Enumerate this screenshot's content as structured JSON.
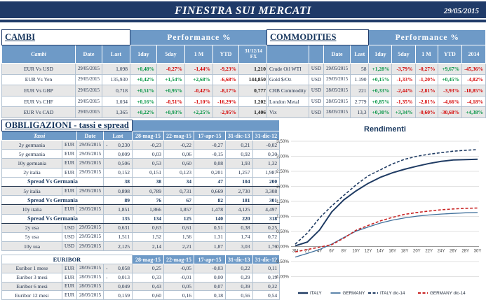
{
  "header": {
    "title": "FINESTRA SUI MERCATI",
    "date": "29/05/2015"
  },
  "colors": {
    "navy": "#1F3A68",
    "header_blue": "#6E9AC7",
    "positive_green": "#009342",
    "negative_red": "#D40000",
    "row_shade_gray": "#E7E7E7"
  },
  "cambi": {
    "title": "CAMBI",
    "perf_header": "Performance  %",
    "col_headers": {
      "name": "Cambi",
      "date": "Date",
      "last": "Last",
      "perf": [
        "1day",
        "5day",
        "1 M",
        "YTD"
      ],
      "fx": "31/12/14 FX"
    },
    "rows": [
      {
        "name": "EUR Vs USD",
        "date": "29/05/2015",
        "last": "1,098",
        "perf": [
          "+0,48%",
          "-0,27%",
          "-1,44%",
          "-9,23%"
        ],
        "fx": "1,210"
      },
      {
        "name": "EUR Vs Yen",
        "date": "29/05/2015",
        "last": "135,930",
        "perf": [
          "+0,42%",
          "+1,54%",
          "+2,68%",
          "-6,68%"
        ],
        "fx": "144,850"
      },
      {
        "name": "EUR Vs GBP",
        "date": "29/05/2015",
        "last": "0,718",
        "perf": [
          "+0,51%",
          "+0,95%",
          "-0,42%",
          "-8,17%"
        ],
        "fx": "0,777"
      },
      {
        "name": "EUR Vs CHF",
        "date": "29/05/2015",
        "last": "1,034",
        "perf": [
          "+0,16%",
          "-0,51%",
          "-1,10%",
          "-16,29%"
        ],
        "fx": "1,202"
      },
      {
        "name": "EUR Vs CAD",
        "date": "29/05/2015",
        "last": "1,365",
        "perf": [
          "+0,22%",
          "+0,93%",
          "+2,25%",
          "-2,95%"
        ],
        "fx": "1,406"
      }
    ]
  },
  "commodities": {
    "title": "COMMODITIES",
    "perf_header": "Performance  %",
    "col_headers": {
      "date": "Date",
      "last": "Last",
      "perf": [
        "1day",
        "5day",
        "1 M",
        "YTD",
        "2014"
      ]
    },
    "rows": [
      {
        "name": "Crude Oil WTI",
        "cur": "USD",
        "date": "29/05/2015",
        "last": "58",
        "perf": [
          "+1,28%",
          "-3,79%",
          "-0,27%",
          "+9,67%",
          "-45,36%"
        ]
      },
      {
        "name": "Gold $/Oz",
        "cur": "USD",
        "date": "29/05/2015",
        "last": "1.190",
        "perf": [
          "+0,15%",
          "-1,33%",
          "-1,20%",
          "+0,45%",
          "-4,82%"
        ]
      },
      {
        "name": "CRB Commodity",
        "cur": "USD",
        "date": "28/05/2015",
        "last": "221",
        "perf": [
          "+0,33%",
          "-2,44%",
          "-2,81%",
          "-3,93%",
          "-18,85%"
        ]
      },
      {
        "name": "London Metal",
        "cur": "USD",
        "date": "28/05/2015",
        "last": "2.779",
        "perf": [
          "+0,85%",
          "-1,35%",
          "-2,81%",
          "-4,66%",
          "-4,18%"
        ]
      },
      {
        "name": "Vix",
        "cur": "USD",
        "date": "28/05/2015",
        "last": "13,3",
        "perf": [
          "+0,30%",
          "+3,34%",
          "-0,60%",
          "-30,68%",
          "+4,38%"
        ]
      }
    ]
  },
  "obbligazioni": {
    "title": "OBBLIGAZIONI - tassi e spread",
    "col_headers": {
      "name": "Tassi",
      "date": "Date",
      "last": "Last",
      "values": [
        "28-mag-15",
        "22-mag-15",
        "17-apr-15",
        "31-dic-13",
        "31-dic-12"
      ]
    },
    "rows": [
      {
        "kind": "rate",
        "name": "2y germania",
        "cur": "EUR",
        "date": "29/05/2015",
        "last": "-0,230",
        "values": [
          "-0,23",
          "-0,22",
          "-0,27",
          "0,21",
          "-0,02"
        ]
      },
      {
        "kind": "rate",
        "name": "5y germania",
        "cur": "EUR",
        "date": "29/05/2015",
        "last": "0,009",
        "values": [
          "0,03",
          "0,06",
          "-0,15",
          "0,92",
          "0,30"
        ]
      },
      {
        "kind": "rate",
        "name": "10y germania",
        "cur": "EUR",
        "date": "29/05/2015",
        "last": "0,506",
        "values": [
          "0,53",
          "0,60",
          "0,08",
          "1,93",
          "1,32"
        ]
      },
      {
        "kind": "rate",
        "name": "2y italia",
        "cur": "EUR",
        "date": "29/05/2015",
        "last": "0,152",
        "values": [
          "0,151",
          "0,123",
          "0,201",
          "1,257",
          "1,987"
        ]
      },
      {
        "kind": "spread",
        "name": "Spread Vs Germania",
        "last": "38",
        "values": [
          "38",
          "34",
          "47",
          "104",
          "200"
        ]
      },
      {
        "kind": "rate",
        "name": "5y italia",
        "cur": "EUR",
        "date": "29/05/2015",
        "last": "0,898",
        "values": [
          "0,789",
          "0,731",
          "0,669",
          "2,730",
          "3,308"
        ]
      },
      {
        "kind": "spread",
        "name": "Spread Vs Germania",
        "last": "89",
        "values": [
          "76",
          "67",
          "82",
          "181",
          "301"
        ]
      },
      {
        "kind": "rate",
        "name": "10y italia",
        "cur": "EUR",
        "date": "29/05/2015",
        "last": "1,851",
        "values": [
          "1,866",
          "1,857",
          "1,478",
          "4,125",
          "4,497"
        ]
      },
      {
        "kind": "spread",
        "name": "Spread Vs Germania",
        "last": "135",
        "values": [
          "134",
          "125",
          "140",
          "220",
          "318"
        ]
      },
      {
        "kind": "rate",
        "name": "2y usa",
        "cur": "USD",
        "date": "29/05/2015",
        "last": "0,631",
        "values": [
          "0,63",
          "0,61",
          "0,51",
          "0,38",
          "0,25"
        ]
      },
      {
        "kind": "rate",
        "name": "5y usa",
        "cur": "USD",
        "date": "29/05/2015",
        "last": "1,511",
        "values": [
          "1,52",
          "1,56",
          "1,31",
          "1,74",
          "0,72"
        ]
      },
      {
        "kind": "rate",
        "name": "10y usa",
        "cur": "USD",
        "date": "29/05/2015",
        "last": "2,125",
        "values": [
          "2,14",
          "2,21",
          "1,87",
          "3,03",
          "1,76"
        ]
      }
    ]
  },
  "euribor": {
    "title": "EURIBOR",
    "col_headers": [
      "28-mag-15",
      "22-mag-15",
      "17-apr-15",
      "31-dic-13",
      "31-dic-12"
    ],
    "rows": [
      {
        "name": "Euribor 1 mese",
        "cur": "EUR",
        "date": "28/05/2015",
        "last": "-0,058",
        "values": [
          "0,25",
          "-0,05",
          "-0,03",
          "0,22",
          "0,11"
        ]
      },
      {
        "name": "Euribor 3 mesi",
        "cur": "EUR",
        "date": "28/05/2015",
        "last": "-0,013",
        "values": [
          "0,33",
          "-0,01",
          "0,00",
          "0,29",
          "0,19"
        ]
      },
      {
        "name": "Euribor 6 mesi",
        "cur": "EUR",
        "date": "28/05/2015",
        "last": "0,049",
        "values": [
          "0,43",
          "0,05",
          "0,07",
          "0,39",
          "0,32"
        ]
      },
      {
        "name": "Euribor 12 mesi",
        "cur": "EUR",
        "date": "28/05/2015",
        "last": "0,159",
        "values": [
          "0,60",
          "0,16",
          "0,18",
          "0,56",
          "0,54"
        ]
      }
    ]
  },
  "chart_data": {
    "type": "line",
    "title": "Rendimenti",
    "x": [
      "3M",
      "2Y",
      "4Y",
      "6Y",
      "8Y",
      "10Y",
      "12Y",
      "14Y",
      "16Y",
      "18Y",
      "20Y",
      "22Y",
      "24Y",
      "26Y",
      "28Y",
      "30Y"
    ],
    "y_ticks": [
      "3,50%",
      "3,00%",
      "2,50%",
      "2,00%",
      "1,50%",
      "1,00%",
      "0,50%",
      "0,00%",
      "-0,50%",
      "-1,00%"
    ],
    "ylim": [
      -1.0,
      3.5
    ],
    "unit": "percent",
    "grid": true,
    "legend_position": "bottom",
    "series": [
      {
        "name": "ITALY",
        "style": "solid",
        "color": "#1F3B63",
        "width": 2,
        "values": [
          0.02,
          0.15,
          0.55,
          1.15,
          1.55,
          1.85,
          2.1,
          2.3,
          2.45,
          2.57,
          2.67,
          2.76,
          2.83,
          2.88,
          2.89,
          2.9
        ]
      },
      {
        "name": "GERMANY",
        "style": "solid",
        "color": "#41719C",
        "width": 1.3,
        "values": [
          -0.35,
          -0.23,
          -0.1,
          0.08,
          0.3,
          0.51,
          0.65,
          0.78,
          0.88,
          0.95,
          1.01,
          1.05,
          1.08,
          1.1,
          1.12,
          1.13
        ]
      },
      {
        "name": "ITALY dic-14",
        "style": "dashed",
        "color": "#1F3B63",
        "width": 1.6,
        "values": [
          0.08,
          0.45,
          0.95,
          1.35,
          1.7,
          2.05,
          2.35,
          2.55,
          2.75,
          2.9,
          3.0,
          3.07,
          3.12,
          3.17,
          3.2,
          3.22
        ]
      },
      {
        "name": "GERMANY dic-14",
        "style": "dashed",
        "color": "#C82323",
        "width": 1.6,
        "values": [
          -0.18,
          -0.1,
          -0.02,
          0.06,
          0.28,
          0.54,
          0.7,
          0.85,
          0.97,
          1.07,
          1.13,
          1.18,
          1.22,
          1.25,
          1.27,
          1.28
        ]
      }
    ]
  }
}
